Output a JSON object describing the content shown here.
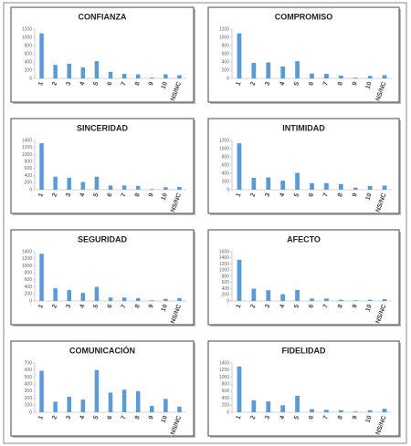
{
  "chart_data": [
    {
      "type": "bar",
      "title": "CONFIANZA",
      "categories": [
        "1",
        "2",
        "3",
        "4",
        "5",
        "6",
        "7",
        "8",
        "9",
        "10",
        "NS/NC"
      ],
      "values": [
        1100,
        330,
        360,
        270,
        420,
        160,
        110,
        100,
        20,
        100,
        80
      ],
      "color": "#5b9bd5",
      "ylim": [
        0,
        1200
      ],
      "yticks": [
        0,
        200,
        400,
        600,
        800,
        1000,
        1200
      ]
    },
    {
      "type": "bar",
      "title": "COMPROMISO",
      "categories": [
        "1",
        "2",
        "3",
        "4",
        "5",
        "6",
        "7",
        "8",
        "9",
        "10",
        "NS/NC"
      ],
      "values": [
        1100,
        380,
        390,
        290,
        420,
        120,
        110,
        70,
        20,
        60,
        80
      ],
      "color": "#5b9bd5",
      "ylim": [
        0,
        1200
      ],
      "yticks": [
        0,
        200,
        400,
        600,
        800,
        1000,
        1200
      ]
    },
    {
      "type": "bar",
      "title": "SINCERIDAD",
      "categories": [
        "1",
        "2",
        "3",
        "4",
        "5",
        "6",
        "7",
        "8",
        "9",
        "10",
        "NS/NC"
      ],
      "values": [
        1320,
        370,
        340,
        220,
        370,
        120,
        120,
        110,
        20,
        70,
        80
      ],
      "color": "#5b9bd5",
      "ylim": [
        0,
        1400
      ],
      "yticks": [
        0,
        200,
        400,
        600,
        800,
        1000,
        1200,
        1400
      ]
    },
    {
      "type": "bar",
      "title": "INTIMIDAD",
      "categories": [
        "1",
        "2",
        "3",
        "4",
        "5",
        "6",
        "7",
        "8",
        "9",
        "10",
        "NS/NC"
      ],
      "values": [
        1130,
        290,
        300,
        220,
        410,
        160,
        160,
        140,
        50,
        90,
        100
      ],
      "color": "#5b9bd5",
      "ylim": [
        0,
        1200
      ],
      "yticks": [
        0,
        200,
        400,
        600,
        800,
        1000,
        1200
      ]
    },
    {
      "type": "bar",
      "title": "SEGURIDAD",
      "categories": [
        "1",
        "2",
        "3",
        "4",
        "5",
        "6",
        "7",
        "8",
        "9",
        "10",
        "NS/NC"
      ],
      "values": [
        1340,
        360,
        310,
        230,
        400,
        100,
        100,
        80,
        20,
        60,
        80
      ],
      "color": "#5b9bd5",
      "ylim": [
        0,
        1400
      ],
      "yticks": [
        0,
        200,
        400,
        600,
        800,
        1000,
        1200,
        1400
      ]
    },
    {
      "type": "bar",
      "title": "AFECTO",
      "categories": [
        "1",
        "2",
        "3",
        "4",
        "5",
        "6",
        "7",
        "8",
        "9",
        "10",
        "NS/NC"
      ],
      "values": [
        1340,
        400,
        350,
        220,
        360,
        80,
        80,
        40,
        20,
        40,
        60
      ],
      "color": "#5b9bd5",
      "ylim": [
        0,
        1600
      ],
      "yticks": [
        0,
        200,
        400,
        600,
        800,
        1000,
        1200,
        1400,
        1600
      ]
    },
    {
      "type": "bar",
      "title": "COMUNICACIÓN",
      "categories": [
        "1",
        "2",
        "3",
        "4",
        "5",
        "6",
        "7",
        "8",
        "9",
        "10",
        "NS/NC"
      ],
      "values": [
        590,
        150,
        220,
        180,
        600,
        280,
        320,
        300,
        90,
        190,
        80
      ],
      "color": "#5b9bd5",
      "ylim": [
        0,
        700
      ],
      "yticks": [
        0,
        100,
        200,
        300,
        400,
        500,
        600,
        700
      ]
    },
    {
      "type": "bar",
      "title": "FIDELIDAD",
      "categories": [
        "1",
        "2",
        "3",
        "4",
        "5",
        "6",
        "7",
        "8",
        "9",
        "10",
        "NS/NC"
      ],
      "values": [
        1300,
        340,
        310,
        200,
        470,
        90,
        70,
        60,
        20,
        60,
        100
      ],
      "color": "#5b9bd5",
      "ylim": [
        0,
        1400
      ],
      "yticks": [
        0,
        200,
        400,
        600,
        800,
        1000,
        1200,
        1400
      ]
    }
  ]
}
